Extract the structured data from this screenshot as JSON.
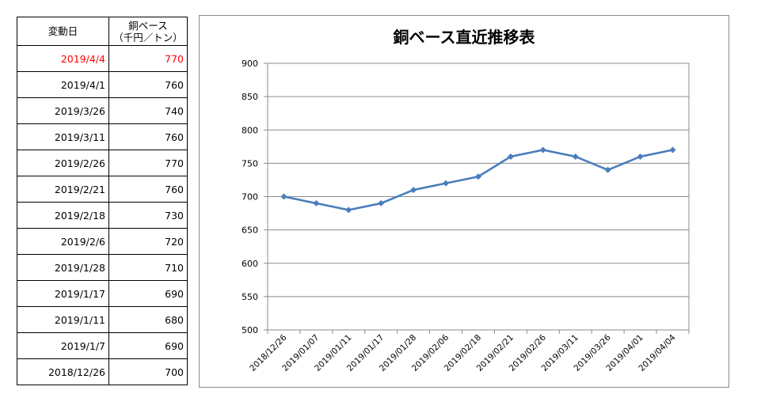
{
  "table": {
    "header": {
      "col1": "変動日",
      "col2_line1": "銅ベース",
      "col2_line2": "（千円／トン）"
    },
    "rows": [
      {
        "date": "2019/4/4",
        "price": "770"
      },
      {
        "date": "2019/4/1",
        "price": "760"
      },
      {
        "date": "2019/3/26",
        "price": "740"
      },
      {
        "date": "2019/3/11",
        "price": "760"
      },
      {
        "date": "2019/2/26",
        "price": "770"
      },
      {
        "date": "2019/2/21",
        "price": "760"
      },
      {
        "date": "2019/2/18",
        "price": "730"
      },
      {
        "date": "2019/2/6",
        "price": "720"
      },
      {
        "date": "2019/1/28",
        "price": "710"
      },
      {
        "date": "2019/1/17",
        "price": "690"
      },
      {
        "date": "2019/1/11",
        "price": "680"
      },
      {
        "date": "2019/1/7",
        "price": "690"
      },
      {
        "date": "2018/12/26",
        "price": "700"
      }
    ],
    "highlight_color": "#ff0000"
  },
  "chart_data": {
    "type": "line",
    "title": "銅ベース直近推移表",
    "categories": [
      "2018/12/26",
      "2019/01/07",
      "2019/01/11",
      "2019/01/17",
      "2019/01/28",
      "2019/02/06",
      "2019/02/18",
      "2019/02/21",
      "2019/02/26",
      "2019/03/11",
      "2019/03/26",
      "2019/04/01",
      "2019/04/04"
    ],
    "series": [
      {
        "values": [
          700,
          690,
          680,
          690,
          710,
          720,
          730,
          760,
          770,
          760,
          740,
          760,
          770
        ]
      }
    ],
    "ylim": [
      500,
      900
    ],
    "yticks": [
      "900",
      "850",
      "800",
      "750",
      "700",
      "650",
      "600",
      "550",
      "500"
    ],
    "grid": true,
    "line_color": "#4a7ebb",
    "marker": "diamond"
  }
}
